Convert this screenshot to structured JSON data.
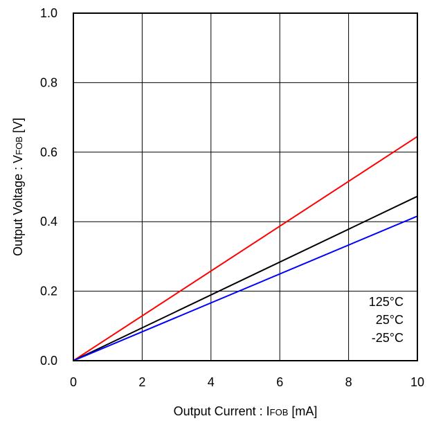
{
  "chart_data": {
    "type": "line",
    "title": "",
    "x_axis": {
      "label_prefix": "Output Current : I",
      "label_sub": "FOB",
      "label_suffix": " [mA]",
      "range": [
        0,
        10
      ],
      "ticks": [
        "0",
        "2",
        "4",
        "6",
        "8",
        "10"
      ],
      "tick_values": [
        0,
        2,
        4,
        6,
        8,
        10
      ]
    },
    "y_axis": {
      "label_prefix": "Output Voltage : V",
      "label_sub": "FOB",
      "label_suffix": " [V]",
      "range": [
        0,
        1.0
      ],
      "ticks": [
        "0.0",
        "0.2",
        "0.4",
        "0.6",
        "0.8",
        "1.0"
      ],
      "tick_values": [
        0,
        0.2,
        0.4,
        0.6,
        0.8,
        1.0
      ]
    },
    "grid": true,
    "legend_position": "bottom-right",
    "series": [
      {
        "name": "125°C",
        "color": "#ff0000",
        "x": [
          0,
          10
        ],
        "y": [
          0,
          0.645
        ]
      },
      {
        "name": "25°C",
        "color": "#000000",
        "x": [
          0,
          10
        ],
        "y": [
          0,
          0.473
        ]
      },
      {
        "name": "-25°C",
        "color": "#0000ff",
        "x": [
          0,
          10
        ],
        "y": [
          0,
          0.416
        ]
      }
    ]
  }
}
